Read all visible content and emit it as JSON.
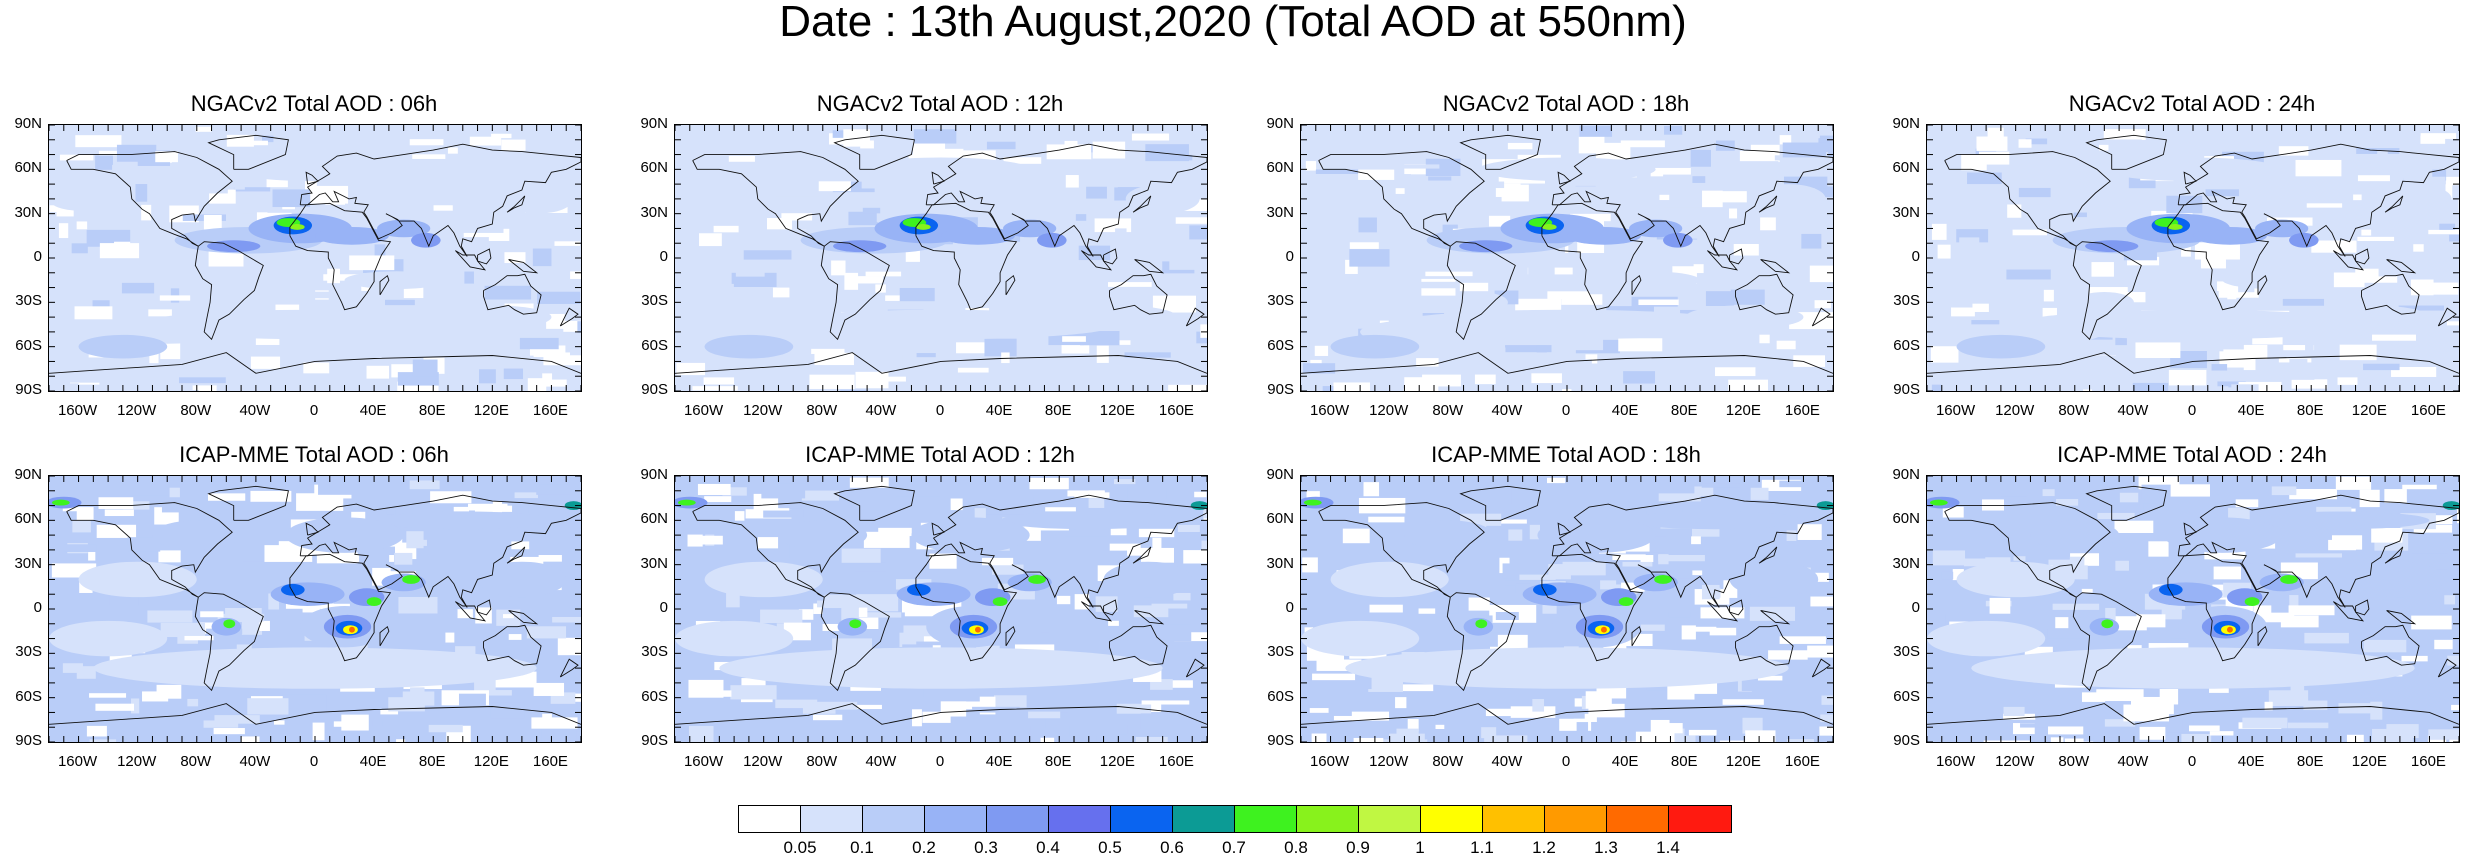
{
  "title": "Date : 13th August,2020 (Total AOD at 550nm)",
  "lat_ticks": [
    "90N",
    "60N",
    "30N",
    "0",
    "30S",
    "60S",
    "90S"
  ],
  "lon_ticks": [
    "160W",
    "120W",
    "80W",
    "40W",
    "0",
    "40E",
    "80E",
    "120E",
    "160E"
  ],
  "panels": [
    {
      "title": "NGACv2 Total AOD : 06h",
      "model": "NGACv2",
      "hour": "06h"
    },
    {
      "title": "NGACv2 Total AOD : 12h",
      "model": "NGACv2",
      "hour": "12h"
    },
    {
      "title": "NGACv2 Total AOD : 18h",
      "model": "NGACv2",
      "hour": "18h"
    },
    {
      "title": "NGACv2 Total AOD : 24h",
      "model": "NGACv2",
      "hour": "24h"
    },
    {
      "title": "ICAP-MME Total AOD : 06h",
      "model": "ICAP-MME",
      "hour": "06h"
    },
    {
      "title": "ICAP-MME Total AOD : 12h",
      "model": "ICAP-MME",
      "hour": "12h"
    },
    {
      "title": "ICAP-MME Total AOD : 18h",
      "model": "ICAP-MME",
      "hour": "18h"
    },
    {
      "title": "ICAP-MME Total AOD : 24h",
      "model": "ICAP-MME",
      "hour": "24h"
    }
  ],
  "colorbar": {
    "levels": [
      "0.05",
      "0.1",
      "0.2",
      "0.3",
      "0.4",
      "0.5",
      "0.6",
      "0.7",
      "0.8",
      "0.9",
      "1",
      "1.1",
      "1.2",
      "1.3",
      "1.4"
    ],
    "colors": [
      "#ffffff",
      "#d6e2fb",
      "#b9cdf8",
      "#98b3f6",
      "#7f9af2",
      "#6670ee",
      "#0a64f0",
      "#0c9b95",
      "#3ef21f",
      "#88f21c",
      "#c0f742",
      "#ffff00",
      "#ffc000",
      "#ff9a00",
      "#ff6a00",
      "#ff1a10"
    ]
  }
}
